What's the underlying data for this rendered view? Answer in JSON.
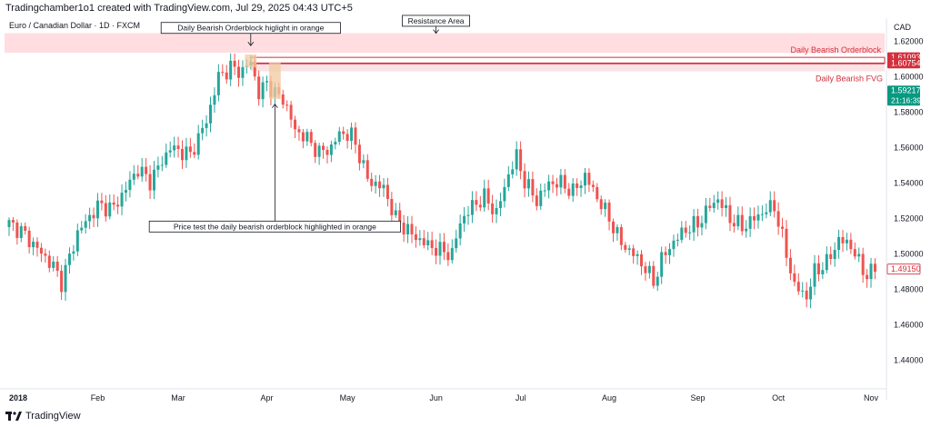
{
  "header": {
    "attribution": "Tradingchamber1o1 created with TradingView.com, Jul 29, 2025 04:43 UTC+5"
  },
  "footer": {
    "brand": "TradingView",
    "logo_icon": "tradingview-logo-icon"
  },
  "chart_data": {
    "type": "candlestick",
    "symbol_title": "Euro / Canadian Dollar · 1D · FXCM",
    "currency": "CAD",
    "ylim": [
      1.425,
      1.633
    ],
    "y_ticks": [
      "1.62000",
      "1.60000",
      "1.58000",
      "1.56000",
      "1.54000",
      "1.52000",
      "1.50000",
      "1.48000",
      "1.46000",
      "1.44000"
    ],
    "x_labels": [
      {
        "label": "2018",
        "bar": 0,
        "bold": true
      },
      {
        "label": "Feb",
        "bar": 22
      },
      {
        "label": "Mar",
        "bar": 42
      },
      {
        "label": "Apr",
        "bar": 64
      },
      {
        "label": "May",
        "bar": 84
      },
      {
        "label": "Jun",
        "bar": 106
      },
      {
        "label": "Jul",
        "bar": 127
      },
      {
        "label": "Aug",
        "bar": 149
      },
      {
        "label": "Sep",
        "bar": 171
      },
      {
        "label": "Oct",
        "bar": 191
      },
      {
        "label": "Nov",
        "bar": 214
      }
    ],
    "bar_count": 216,
    "anchors": [
      [
        0,
        1.517
      ],
      [
        3,
        1.513
      ],
      [
        7,
        1.503
      ],
      [
        11,
        1.493
      ],
      [
        13,
        1.484
      ],
      [
        17,
        1.512
      ],
      [
        22,
        1.527
      ],
      [
        26,
        1.526
      ],
      [
        32,
        1.548
      ],
      [
        35,
        1.541
      ],
      [
        40,
        1.56
      ],
      [
        45,
        1.556
      ],
      [
        49,
        1.575
      ],
      [
        52,
        1.6
      ],
      [
        55,
        1.605
      ],
      [
        58,
        1.603
      ],
      [
        60,
        1.609
      ],
      [
        62,
        1.59
      ],
      [
        64,
        1.597
      ],
      [
        66,
        1.59
      ],
      [
        68,
        1.588
      ],
      [
        71,
        1.57
      ],
      [
        74,
        1.565
      ],
      [
        77,
        1.557
      ],
      [
        80,
        1.56
      ],
      [
        82,
        1.568
      ],
      [
        85,
        1.567
      ],
      [
        87,
        1.556
      ],
      [
        89,
        1.542
      ],
      [
        93,
        1.537
      ],
      [
        96,
        1.52
      ],
      [
        100,
        1.511
      ],
      [
        104,
        1.505
      ],
      [
        107,
        1.502
      ],
      [
        110,
        1.5
      ],
      [
        112,
        1.518
      ],
      [
        115,
        1.527
      ],
      [
        118,
        1.532
      ],
      [
        121,
        1.523
      ],
      [
        124,
        1.545
      ],
      [
        126,
        1.555
      ],
      [
        128,
        1.541
      ],
      [
        131,
        1.53
      ],
      [
        134,
        1.54
      ],
      [
        137,
        1.54
      ],
      [
        140,
        1.535
      ],
      [
        143,
        1.544
      ],
      [
        146,
        1.532
      ],
      [
        149,
        1.52
      ],
      [
        152,
        1.506
      ],
      [
        155,
        1.5
      ],
      [
        158,
        1.492
      ],
      [
        160,
        1.484
      ],
      [
        162,
        1.497
      ],
      [
        165,
        1.507
      ],
      [
        168,
        1.514
      ],
      [
        171,
        1.517
      ],
      [
        174,
        1.527
      ],
      [
        176,
        1.531
      ],
      [
        179,
        1.52
      ],
      [
        182,
        1.515
      ],
      [
        185,
        1.52
      ],
      [
        188,
        1.525
      ],
      [
        190,
        1.527
      ],
      [
        192,
        1.509
      ],
      [
        195,
        1.482
      ],
      [
        198,
        1.476
      ],
      [
        200,
        1.49
      ],
      [
        203,
        1.495
      ],
      [
        206,
        1.508
      ],
      [
        209,
        1.505
      ],
      [
        211,
        1.495
      ],
      [
        213,
        1.488
      ],
      [
        215,
        1.492
      ]
    ],
    "resistance_zone": {
      "from": 1.6135,
      "to": 1.6245,
      "label": "Resistance Area"
    },
    "orderblock": {
      "from": 1.6075,
      "to": 1.6109,
      "label": "Daily Bearish Orderblock"
    },
    "fvg": {
      "from": 1.603,
      "to": 1.6075,
      "label": "Daily Bearish FVG"
    },
    "orange_boxes": [
      {
        "bar_from": 59,
        "bar_to": 61,
        "from": 1.6052,
        "to": 1.6125
      },
      {
        "bar_from": 65,
        "bar_to": 67,
        "from": 1.5875,
        "to": 1.608
      }
    ],
    "price_labels": [
      {
        "value": "1.61093",
        "y": 1.61093,
        "style": "red"
      },
      {
        "value": "1.60754",
        "y": 1.60754,
        "style": "red"
      },
      {
        "value": "1.59217",
        "y": 1.59217,
        "style": "green",
        "sub": "21:16:39"
      },
      {
        "value": "1.49150",
        "y": 1.4915,
        "style": "red-outline"
      }
    ],
    "annotations": [
      {
        "text": "Daily Bearish Orderblock higlight in orange",
        "bar": 60,
        "price": 1.6275,
        "arrow_to": 1.6175
      },
      {
        "text": "Resistance Area",
        "bar": 106,
        "price": 1.6315,
        "arrow_to": 1.6245
      },
      {
        "text": "Price test the daily bearish orderblock highlighted in orange",
        "bar": 66,
        "price": 1.5155,
        "arrow_to": 1.5845
      }
    ],
    "colors": {
      "up": "#26a69a",
      "down": "#ef5350",
      "resistance": "#ffdde0",
      "orderblock_line": "#d32f3c",
      "fvg": "#fbe3e5",
      "orange": "#f2c9a0",
      "axis_text": "#131722"
    }
  }
}
